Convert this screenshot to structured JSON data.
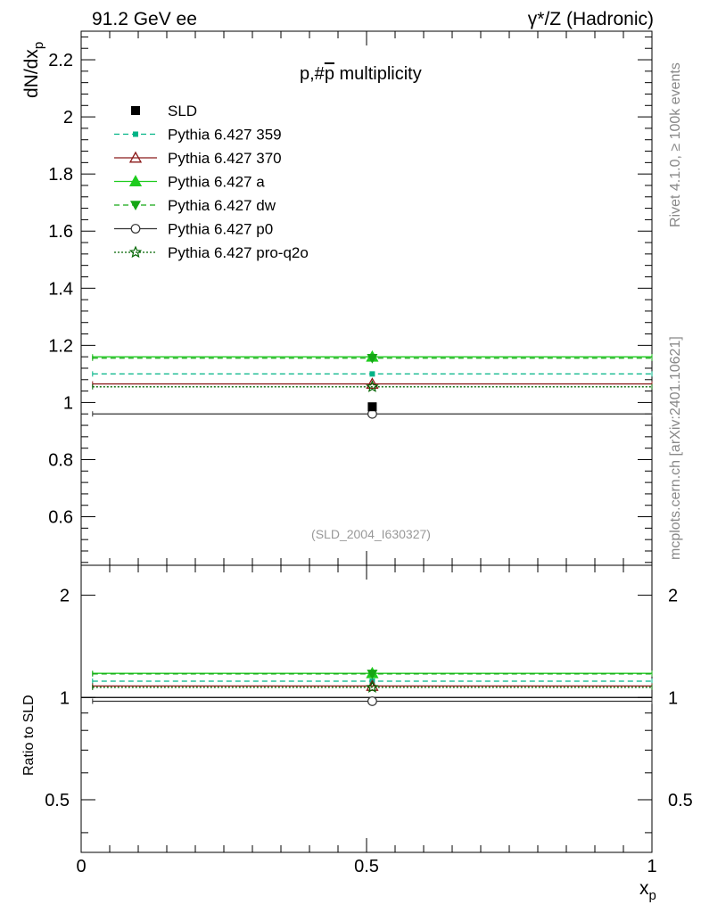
{
  "header": {
    "left": "91.2 GeV ee",
    "right": "γ*/Z (Hadronic)"
  },
  "side_labels": {
    "rivet": "Rivet 4.1.0, ≥ 100k events",
    "mcplots": "mcplots.cern.ch [arXiv:2401.10621]"
  },
  "chart_data": {
    "type": "line",
    "title": "p,#p̅ multiplicity",
    "title_prefix": "p,#",
    "title_pbar": "p",
    "analysis_label": "(SLD_2004_I630327)",
    "xlabel": "x",
    "xlabel_sub": "p",
    "ylabel": "dN/dx",
    "ylabel_sub": "p",
    "ratio_ylabel": "Ratio to SLD",
    "xlim": [
      0,
      1
    ],
    "ylim": [
      0.43,
      2.3
    ],
    "ratio_ylim": [
      0.35,
      2.45
    ],
    "x_ticks": [
      0,
      0.5,
      1
    ],
    "x_tick_labels": [
      "0",
      "0.5",
      "1"
    ],
    "y_ticks": [
      0.6,
      0.8,
      1.0,
      1.2,
      1.4,
      1.6,
      1.8,
      2.0,
      2.2
    ],
    "y_tick_labels": [
      "0.6",
      "0.8",
      "1",
      "1.2",
      "1.4",
      "1.6",
      "1.8",
      "2",
      "2.2"
    ],
    "ratio_ticks": [
      0.5,
      1,
      2
    ],
    "ratio_tick_labels": [
      "0.5",
      "1",
      "2"
    ],
    "bin": {
      "x_low": 0.02,
      "x_high": 1.0,
      "x_center": 0.51
    },
    "data": {
      "name": "SLD",
      "x": 0.51,
      "y": 0.985,
      "color": "#000000",
      "marker": "square"
    },
    "series": [
      {
        "name": "Pythia 6.427 359",
        "y": 1.1,
        "ratio": 1.117,
        "color": "#00b386",
        "dash": "6,4",
        "marker": "square-small"
      },
      {
        "name": "Pythia 6.427 370",
        "y": 1.065,
        "ratio": 1.081,
        "color": "#8b1a1a",
        "dash": "",
        "marker": "triangle-open"
      },
      {
        "name": "Pythia 6.427 a",
        "y": 1.16,
        "ratio": 1.178,
        "color": "#1ecc1e",
        "dash": "",
        "marker": "triangle"
      },
      {
        "name": "Pythia 6.427 dw",
        "y": 1.155,
        "ratio": 1.173,
        "color": "#15a615",
        "dash": "6,4",
        "marker": "triangle-down"
      },
      {
        "name": "Pythia 6.427 p0",
        "y": 0.96,
        "ratio": 0.975,
        "color": "#333333",
        "dash": "",
        "marker": "circle-open"
      },
      {
        "name": "Pythia 6.427 pro-q2o",
        "y": 1.055,
        "ratio": 1.071,
        "color": "#006400",
        "dash": "2,2",
        "marker": "star-open"
      }
    ]
  }
}
